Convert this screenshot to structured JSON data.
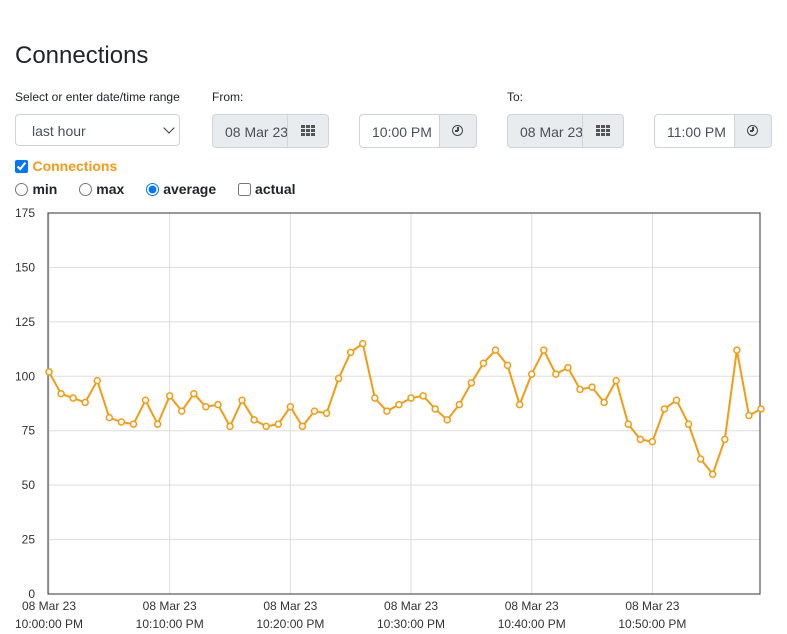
{
  "page": {
    "title": "Connections"
  },
  "range": {
    "label": "Select or enter date/time range",
    "selected": "last hour"
  },
  "from": {
    "label": "From:",
    "date": "08 Mar 23",
    "time": "10:00 PM"
  },
  "to": {
    "label": "To:",
    "date": "08 Mar 23",
    "time": "11:00 PM"
  },
  "series_toggle": {
    "label": "Connections",
    "checked": true
  },
  "modes": [
    {
      "label": "min",
      "type": "radio",
      "checked": false
    },
    {
      "label": "max",
      "type": "radio",
      "checked": false
    },
    {
      "label": "average",
      "type": "radio",
      "checked": true
    },
    {
      "label": "actual",
      "type": "checkbox",
      "checked": false
    }
  ],
  "colors": {
    "line": "#f39c12",
    "grid": "#dddddd",
    "frame": "#333333"
  },
  "chart_data": {
    "type": "line",
    "title": "",
    "xlabel": "",
    "ylabel": "",
    "ylim": [
      0,
      175
    ],
    "yticks": [
      0,
      25,
      50,
      75,
      100,
      125,
      150,
      175
    ],
    "xlim_minutes": [
      0,
      59
    ],
    "xticks": [
      {
        "minute": 0,
        "date": "08 Mar 23",
        "time": "10:00:00 PM"
      },
      {
        "minute": 10,
        "date": "08 Mar 23",
        "time": "10:10:00 PM"
      },
      {
        "minute": 20,
        "date": "08 Mar 23",
        "time": "10:20:00 PM"
      },
      {
        "minute": 30,
        "date": "08 Mar 23",
        "time": "10:30:00 PM"
      },
      {
        "minute": 40,
        "date": "08 Mar 23",
        "time": "10:40:00 PM"
      },
      {
        "minute": 50,
        "date": "08 Mar 23",
        "time": "10:50:00 PM"
      }
    ],
    "grid": true,
    "series": [
      {
        "values": [
          102,
          92,
          90,
          88,
          98,
          81,
          79,
          78,
          89,
          78,
          91,
          84,
          92,
          86,
          87,
          77,
          89,
          80,
          77,
          78,
          86,
          77,
          84,
          83,
          99,
          111,
          115,
          90,
          84,
          87,
          90,
          91,
          85,
          80,
          87,
          97,
          106,
          112,
          105,
          87,
          101,
          112,
          101,
          104,
          94,
          95,
          88,
          98,
          78,
          71,
          70,
          85,
          89,
          78,
          62,
          55,
          71,
          112,
          82,
          85
        ]
      }
    ]
  }
}
